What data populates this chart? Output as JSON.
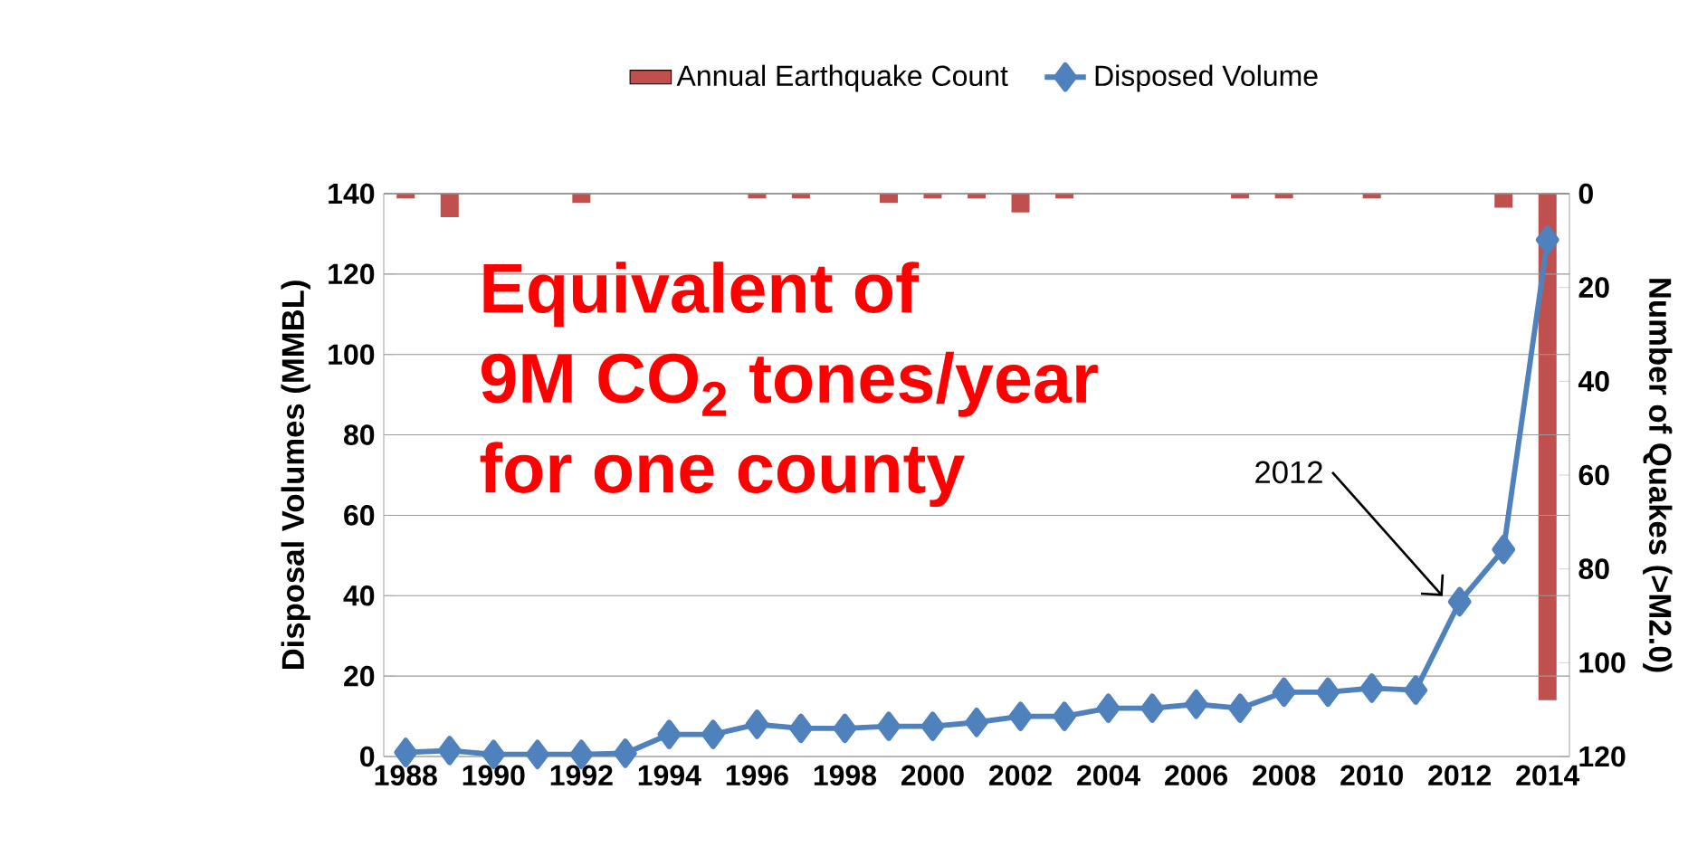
{
  "chart_data": {
    "type": "bar",
    "categories": [
      "1988",
      null,
      "1990",
      null,
      "1992",
      null,
      "1994",
      null,
      "1996",
      null,
      "1998",
      null,
      "2000",
      null,
      "2002",
      null,
      "2004",
      null,
      "2006",
      null,
      "2008",
      null,
      "2010",
      null,
      "2012",
      null,
      "2014"
    ],
    "series": [
      {
        "name": "Annual Earthquake Count",
        "axis": "y2",
        "color": "#c0504d",
        "values": [
          1,
          5,
          0,
          0,
          2,
          0,
          0,
          0,
          1,
          1,
          0,
          2,
          1,
          1,
          4,
          1,
          0,
          0,
          0,
          1,
          1,
          0,
          1,
          0,
          0,
          3,
          108
        ]
      },
      {
        "name": "Disposed Volume",
        "type": "line",
        "color": "#4f81bd",
        "marker": "diamond",
        "values": [
          1,
          1.5,
          0.5,
          0.5,
          0.5,
          0.8,
          5.5,
          5.5,
          8,
          7,
          7,
          7.5,
          7.5,
          8.5,
          10,
          10,
          12,
          12,
          13,
          12,
          16,
          16,
          17,
          16.5,
          38.5,
          51.5,
          128.5
        ]
      }
    ],
    "ylabel": "Disposal Volumes (MMBL)",
    "y2label": "Number of Quakes (>M2.0)",
    "ylim": [
      0,
      140
    ],
    "yticks": [
      0,
      20,
      40,
      60,
      80,
      100,
      120,
      140
    ],
    "y2lim": [
      120,
      0
    ],
    "y2ticks": [
      0,
      20,
      40,
      60,
      80,
      100,
      120
    ],
    "grid": "y",
    "legend": "top",
    "annotations": [
      "Equivalent of",
      "9M CO$_{2}$ tones/year",
      "for one county",
      "2012"
    ]
  }
}
